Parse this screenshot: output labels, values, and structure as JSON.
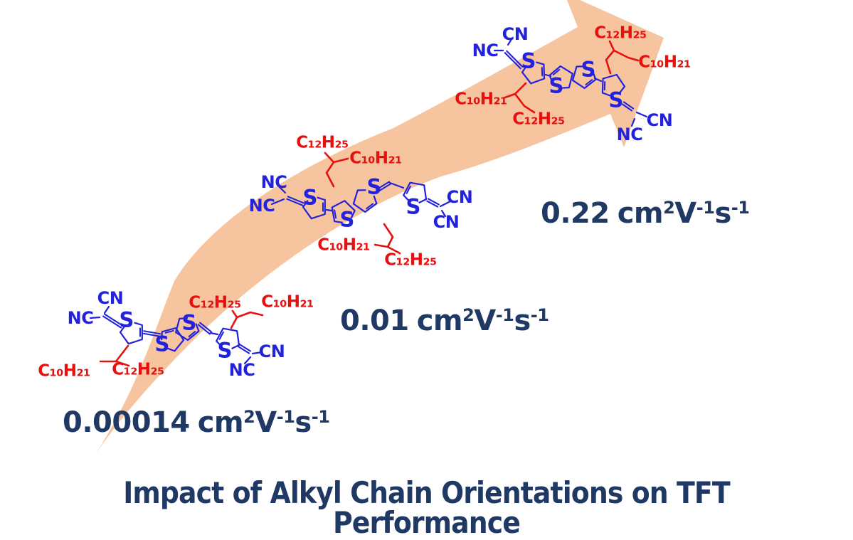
{
  "figure": {
    "title": "Impact of Alkyl Chain Orientations on TFT Performance"
  },
  "colors": {
    "arrow_fill": "#F6C49E",
    "bond_blue": "#2222DD",
    "chain_red": "#E8100E",
    "text_navy": "#1F3864"
  },
  "unit": {
    "cm": "cm",
    "square": "2",
    "volt": "V",
    "minus_one": "-1",
    "second": "s"
  },
  "mobilities": [
    {
      "value": "0.00014"
    },
    {
      "value": "0.01"
    },
    {
      "value": "0.22"
    }
  ],
  "molecules": [
    {
      "atoms": [
        "CN",
        "NC",
        "S",
        "S",
        "S",
        "S",
        "CN",
        "NC"
      ],
      "chains": [
        "C₁₀H₂₁",
        "C₁₂H₂₅",
        "C₁₂H₂₅",
        "C₁₀H₂₁"
      ]
    },
    {
      "atoms": [
        "NC",
        "NC",
        "S",
        "S",
        "S",
        "S",
        "CN",
        "CN"
      ],
      "chains": [
        "C₁₂H₂₅",
        "C₁₀H₂₁",
        "C₁₀H₂₁",
        "C₁₂H₂₅"
      ]
    },
    {
      "atoms": [
        "CN",
        "NC",
        "S",
        "S",
        "S",
        "S",
        "CN",
        "NC"
      ],
      "chains": [
        "C₁₀H₂₁",
        "C₁₂H₂₅",
        "C₁₂H₂₅",
        "C₁₀H₂₁"
      ]
    }
  ]
}
